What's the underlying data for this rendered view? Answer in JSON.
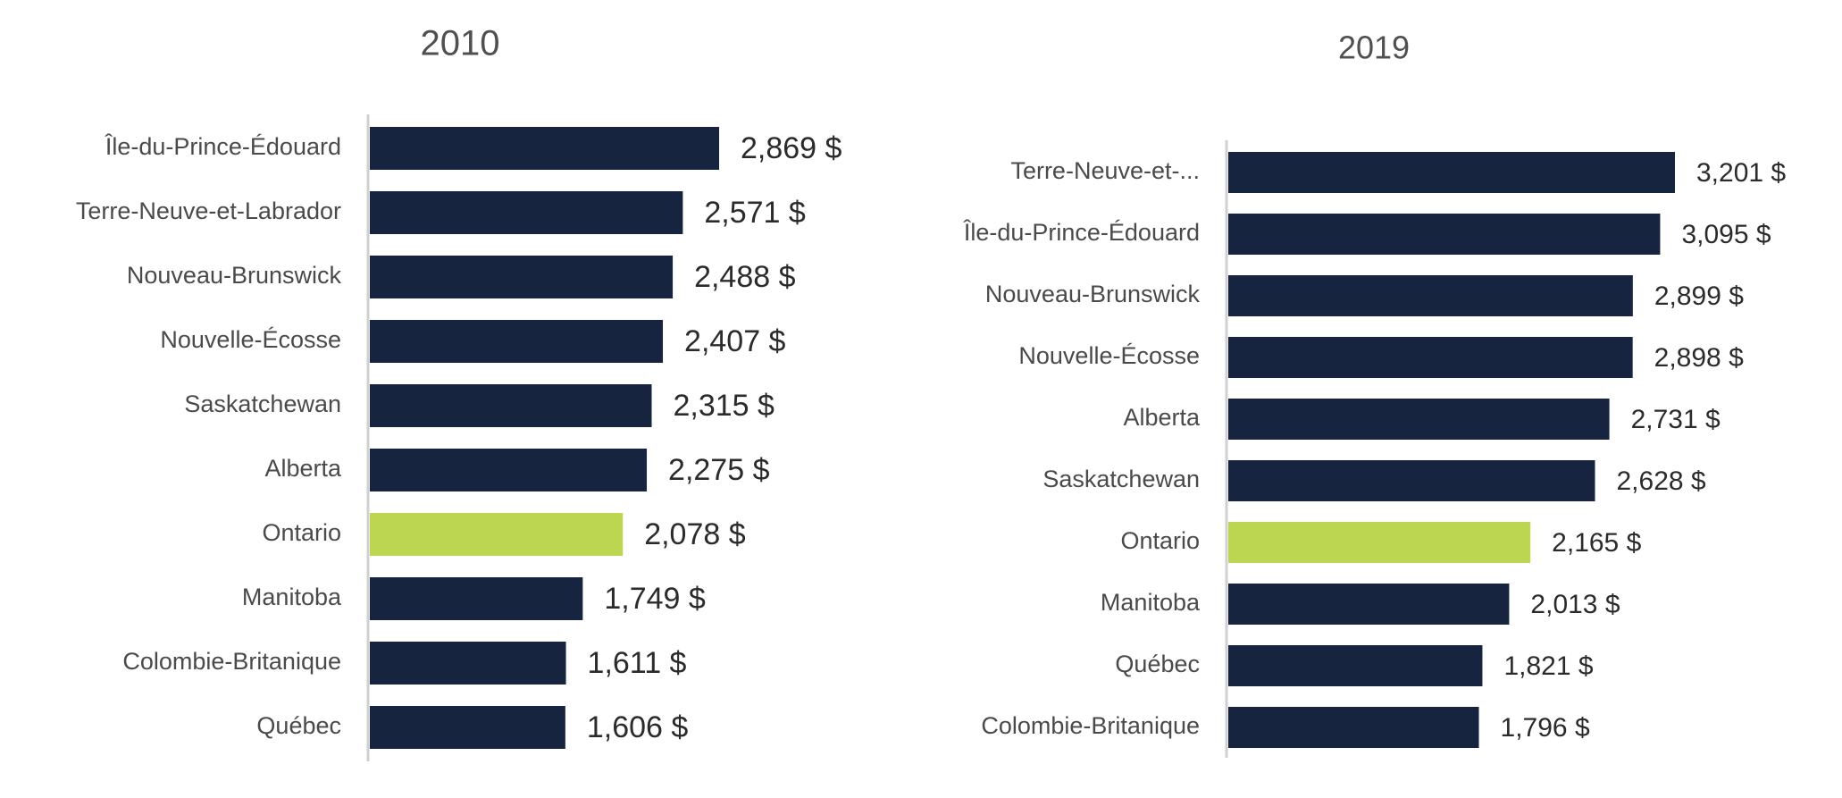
{
  "colors": {
    "bar": "#172440",
    "highlight": "#bcd651",
    "axis": "#d0d0d0",
    "category_text": "#4a4a4a",
    "value_text": "#2b2b2b",
    "title_text": "#505050"
  },
  "chart_data": [
    {
      "type": "bar",
      "orientation": "horizontal",
      "title": "2010",
      "xlabel": "",
      "ylabel": "",
      "xlim": [
        0,
        3201
      ],
      "grid": false,
      "legend": "none",
      "highlight_category": "Ontario",
      "categories": [
        "Île-du-Prince-Édouard",
        "Terre-Neuve-et-Labrador",
        "Nouveau-Brunswick",
        "Nouvelle-Écosse",
        "Saskatchewan",
        "Alberta",
        "Ontario",
        "Manitoba",
        "Colombie-Britanique",
        "Québec"
      ],
      "values": [
        2869,
        2571,
        2488,
        2407,
        2315,
        2275,
        2078,
        1749,
        1611,
        1606
      ],
      "labels": [
        "2,869 $",
        "2,571 $",
        "2,488 $",
        "2,407 $",
        "2,315 $",
        "2,275 $",
        "2,078 $",
        "1,749 $",
        "1,611 $",
        "1,606 $"
      ]
    },
    {
      "type": "bar",
      "orientation": "horizontal",
      "title": "2019",
      "xlabel": "",
      "ylabel": "",
      "xlim": [
        0,
        3201
      ],
      "grid": false,
      "legend": "none",
      "highlight_category": "Ontario",
      "categories": [
        "Terre-Neuve-et-...",
        "Île-du-Prince-Édouard",
        "Nouveau-Brunswick",
        "Nouvelle-Écosse",
        "Alberta",
        "Saskatchewan",
        "Ontario",
        "Manitoba",
        "Québec",
        "Colombie-Britanique"
      ],
      "values": [
        3201,
        3095,
        2899,
        2898,
        2731,
        2628,
        2165,
        2013,
        1821,
        1796
      ],
      "labels": [
        "3,201 $",
        "3,095 $",
        "2,899 $",
        "2,898 $",
        "2,731 $",
        "2,628 $",
        "2,165 $",
        "2,013 $",
        "1,821 $",
        "1,796 $"
      ]
    }
  ]
}
